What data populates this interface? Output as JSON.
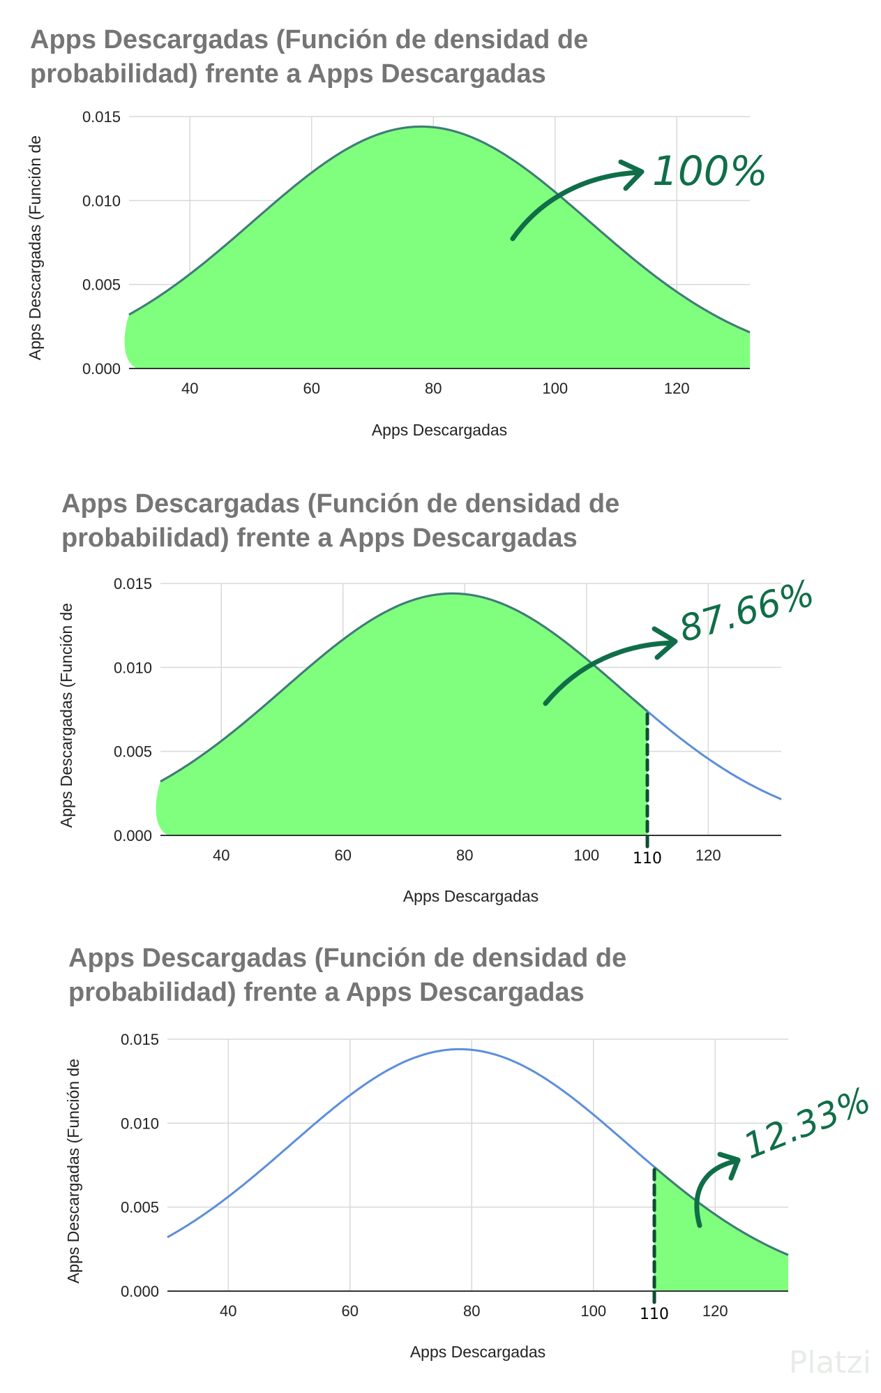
{
  "colors": {
    "fill": "#80ff7f",
    "curve": "#5b8edb",
    "curve_dark": "#3f7d72",
    "annotation": "#0f6e48",
    "cut_line": "#0e4d33",
    "grid": "#d9d9d9",
    "axis": "#333333",
    "title": "#757575"
  },
  "watermark": "Platzi",
  "chart_data": [
    {
      "type": "area",
      "title": "Apps Descargadas (Función de densidad de probabilidad) frente a Apps Descargadas",
      "xlabel": "Apps Descargadas",
      "ylabel": "Apps Descargadas (Función de",
      "x_ticks": [
        40,
        60,
        80,
        100,
        120
      ],
      "y_ticks": [
        "0.000",
        "0.005",
        "0.010",
        "0.015"
      ],
      "xlim": [
        30,
        132
      ],
      "ylim": [
        0,
        0.015
      ],
      "distribution": {
        "mean": 78,
        "sd": 27.7
      },
      "series": [
        {
          "x": [
            30,
            40,
            50,
            60,
            70,
            78,
            80,
            90,
            100,
            110,
            120,
            132
          ],
          "y": [
            0.0032,
            0.0056,
            0.0087,
            0.0117,
            0.0138,
            0.0144,
            0.0143,
            0.0131,
            0.0104,
            0.0074,
            0.0046,
            0.0021
          ]
        }
      ],
      "shaded_region": [
        30,
        132
      ],
      "annotation": "100%",
      "grid": true,
      "legend": "none"
    },
    {
      "type": "area",
      "title": "Apps Descargadas (Función de densidad de probabilidad) frente a Apps Descargadas",
      "xlabel": "Apps Descargadas",
      "ylabel": "Apps Descargadas (Función de",
      "x_ticks": [
        40,
        60,
        80,
        100,
        120
      ],
      "y_ticks": [
        "0.000",
        "0.005",
        "0.010",
        "0.015"
      ],
      "xlim": [
        30,
        132
      ],
      "ylim": [
        0,
        0.015
      ],
      "distribution": {
        "mean": 78,
        "sd": 27.7
      },
      "series": [
        {
          "x": [
            30,
            40,
            50,
            60,
            70,
            78,
            80,
            90,
            100,
            110,
            120,
            132
          ],
          "y": [
            0.0032,
            0.0056,
            0.0087,
            0.0117,
            0.0138,
            0.0144,
            0.0143,
            0.0131,
            0.0104,
            0.0074,
            0.0046,
            0.0021
          ]
        }
      ],
      "shaded_region": [
        30,
        110
      ],
      "cut": 110,
      "cut_label": "110",
      "annotation": "87.66%",
      "grid": true,
      "legend": "none"
    },
    {
      "type": "area",
      "title": "Apps Descargadas (Función de densidad de probabilidad) frente a Apps Descargadas",
      "xlabel": "Apps Descargadas",
      "ylabel": "Apps Descargadas (Función de",
      "x_ticks": [
        40,
        60,
        80,
        100,
        120
      ],
      "y_ticks": [
        "0.000",
        "0.005",
        "0.010",
        "0.015"
      ],
      "xlim": [
        30,
        132
      ],
      "ylim": [
        0,
        0.015
      ],
      "distribution": {
        "mean": 78,
        "sd": 27.7
      },
      "series": [
        {
          "x": [
            30,
            40,
            50,
            60,
            70,
            78,
            80,
            90,
            100,
            110,
            120,
            132
          ],
          "y": [
            0.0032,
            0.0056,
            0.0087,
            0.0117,
            0.0138,
            0.0144,
            0.0143,
            0.0131,
            0.0104,
            0.0074,
            0.0046,
            0.0021
          ]
        }
      ],
      "shaded_region": [
        110,
        132
      ],
      "cut": 110,
      "cut_label": "110",
      "annotation": "12.33%",
      "grid": true,
      "legend": "none"
    }
  ]
}
